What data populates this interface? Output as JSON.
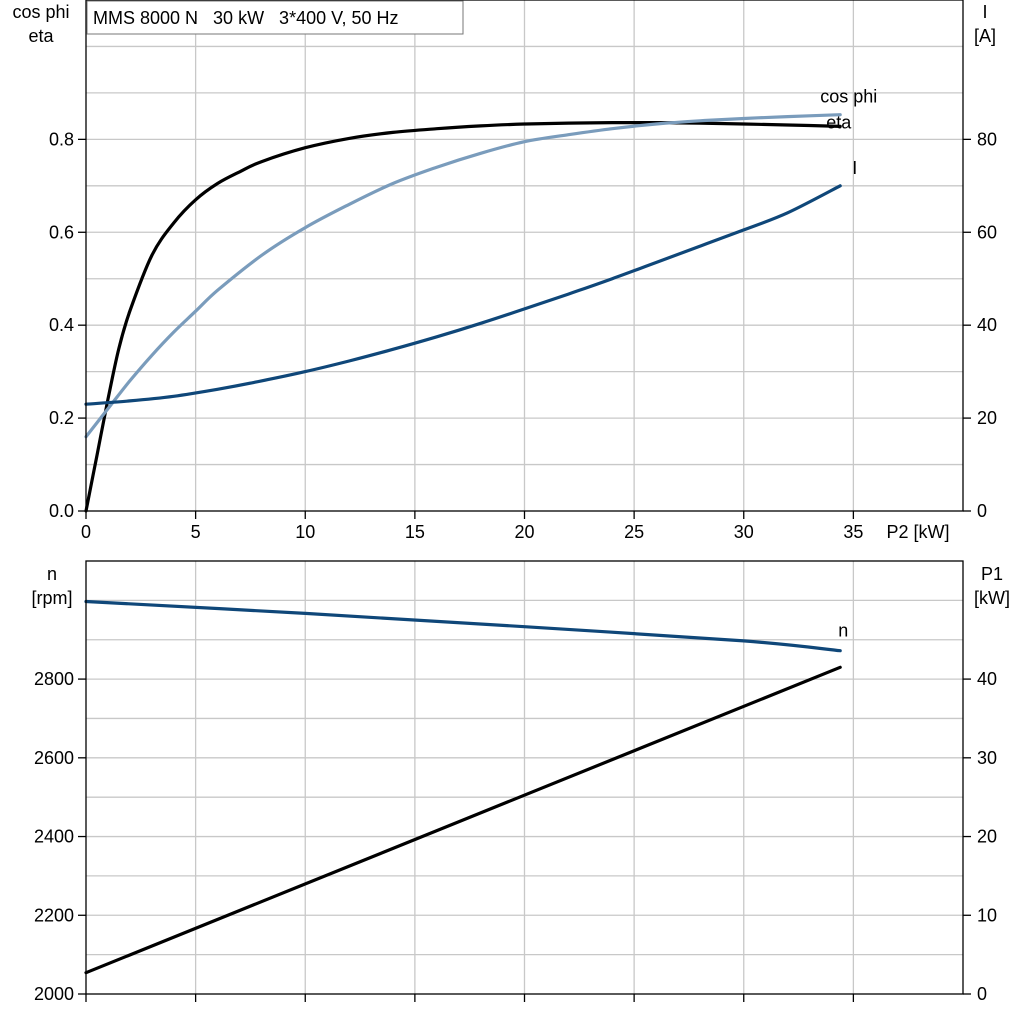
{
  "title": "MMS 8000 N   30 kW   3*400 V, 50 Hz",
  "colors": {
    "eta": "#000000",
    "cos_phi": "#7a9cbc",
    "current": "#0f4779",
    "speed": "#0f4779",
    "p1": "#000000",
    "grid": "#c8c8c8"
  },
  "chart_data": [
    {
      "type": "line",
      "name": "top-panel",
      "xlabel": "P2 [kW]",
      "xlim": [
        0,
        40
      ],
      "xticks": [
        0,
        5,
        10,
        15,
        20,
        25,
        30,
        35
      ],
      "ylabel_left": [
        "cos phi",
        "eta"
      ],
      "ylim_left": [
        0,
        1.1
      ],
      "yticks_left": [
        "0.0",
        "0.2",
        "0.4",
        "0.6",
        "0.8"
      ],
      "ylabel_right": [
        "I",
        "[A]"
      ],
      "ylim_right": [
        0,
        110
      ],
      "yticks_right": [
        "0",
        "20",
        "40",
        "60",
        "80"
      ],
      "grid": true,
      "series": [
        {
          "name": "eta",
          "axis": "left",
          "color": "#000000",
          "x": [
            0,
            0.5,
            1,
            1.5,
            2,
            3,
            4,
            5,
            6,
            7,
            8,
            10,
            12,
            14,
            16,
            18,
            20,
            22,
            24,
            26,
            28,
            30,
            32,
            34.4
          ],
          "y": [
            0,
            0.12,
            0.24,
            0.35,
            0.43,
            0.55,
            0.62,
            0.67,
            0.705,
            0.73,
            0.752,
            0.782,
            0.802,
            0.815,
            0.823,
            0.829,
            0.833,
            0.835,
            0.836,
            0.836,
            0.835,
            0.833,
            0.831,
            0.828
          ]
        },
        {
          "name": "cos phi",
          "axis": "left",
          "color": "#7a9cbc",
          "x": [
            0,
            1,
            2,
            3,
            4,
            5,
            6,
            8,
            10,
            12,
            14,
            16,
            18,
            20,
            22,
            24,
            26,
            28,
            30,
            32,
            34.4
          ],
          "y": [
            0.16,
            0.22,
            0.28,
            0.335,
            0.385,
            0.43,
            0.475,
            0.55,
            0.61,
            0.66,
            0.705,
            0.74,
            0.77,
            0.795,
            0.81,
            0.823,
            0.833,
            0.84,
            0.845,
            0.849,
            0.853
          ]
        },
        {
          "name": "I",
          "axis": "right",
          "color": "#0f4779",
          "x": [
            0,
            2,
            4,
            6,
            8,
            10,
            12,
            14,
            16,
            18,
            20,
            22,
            24,
            26,
            28,
            30,
            32,
            34.4
          ],
          "y": [
            23,
            23.7,
            24.7,
            26.2,
            28,
            30,
            32.3,
            34.8,
            37.5,
            40.4,
            43.5,
            46.7,
            50,
            53.5,
            57,
            60.5,
            64.2,
            70
          ]
        }
      ]
    },
    {
      "type": "line",
      "name": "bottom-panel",
      "xlim": [
        0,
        40
      ],
      "ylabel_left": [
        "n",
        "[rpm]"
      ],
      "ylim_left": [
        2000,
        3100
      ],
      "yticks_left": [
        "2000",
        "2200",
        "2400",
        "2600",
        "2800"
      ],
      "ylabel_right": [
        "P1",
        "[kW]"
      ],
      "ylim_right": [
        0,
        55
      ],
      "yticks_right": [
        "0",
        "10",
        "20",
        "30",
        "40"
      ],
      "grid": true,
      "series": [
        {
          "name": "n",
          "axis": "left",
          "color": "#0f4779",
          "x": [
            0,
            10,
            20,
            30,
            34.4
          ],
          "y": [
            2997,
            2967,
            2933,
            2897,
            2872
          ]
        },
        {
          "name": "P1",
          "axis": "right",
          "color": "#000000",
          "x": [
            0,
            34.4
          ],
          "y": [
            2.7,
            41.5
          ]
        }
      ]
    }
  ]
}
